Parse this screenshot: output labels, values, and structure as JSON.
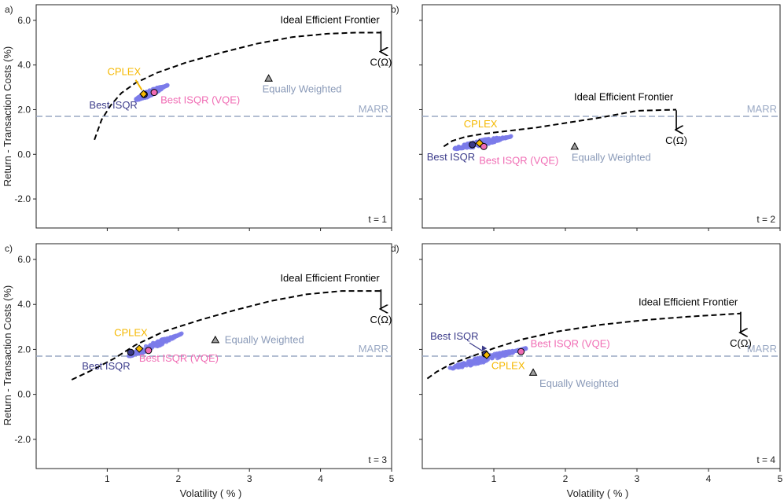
{
  "figure": {
    "ylabel": "Return - Transaction Costs (%)",
    "xlabel": "Volatility ( % )"
  },
  "colors": {
    "frontier": "#000000",
    "marr": "#9aa9c4",
    "cloud": "#7b7bea",
    "best_isqr": "#3b3b8a",
    "best_isqr_vqe": "#f06cb4",
    "cplex": "#f5b800",
    "equally_weighted": "#8a9ab8",
    "ew_marker": "#a0a0a0"
  },
  "chart_data": [
    {
      "type": "scatter",
      "panel_label": "a)",
      "time_label": "t = 1",
      "xlim": [
        0,
        5
      ],
      "ylim": [
        -3.3,
        6.7
      ],
      "xticks": [
        1,
        2,
        3,
        4,
        5
      ],
      "yticks": [
        -2.0,
        0.0,
        2.0,
        4.0,
        6.0
      ],
      "ytick_labels": [
        "-2.0",
        "0.0",
        "2.0",
        "4.0",
        "6.0"
      ],
      "xticks_shown": false,
      "yticks_shown": true,
      "marr": 1.7,
      "marr_label": "MARR",
      "frontier": {
        "label": "Ideal Efficient Frontier",
        "x": [
          0.82,
          0.92,
          1.05,
          1.2,
          1.4,
          1.7,
          2.1,
          2.6,
          3.1,
          3.6,
          4.1,
          4.5,
          4.85
        ],
        "y": [
          0.65,
          1.55,
          2.2,
          2.75,
          3.2,
          3.65,
          4.1,
          4.55,
          4.95,
          5.25,
          5.4,
          5.45,
          5.45
        ],
        "end_label": "C(Ω)",
        "arrow_from": [
          4.85,
          5.45
        ],
        "arrow_to": [
          4.85,
          4.6
        ]
      },
      "cloud": {
        "x": [
          1.4,
          1.85
        ],
        "y": [
          2.45,
          3.1
        ]
      },
      "best_isqr": {
        "label": "Best ISQR",
        "x": 1.52,
        "y": 2.68
      },
      "best_isqr_vqe": {
        "label": "Best ISQR (VQE)",
        "x": 1.66,
        "y": 2.77
      },
      "cplex": {
        "label": "CPLEX",
        "x": 1.51,
        "y": 2.7
      },
      "equally_weighted": {
        "label": "Equally Weighted",
        "x": 3.27,
        "y": 3.4
      }
    },
    {
      "type": "scatter",
      "panel_label": "b)",
      "time_label": "t = 2",
      "xlim": [
        0,
        5
      ],
      "ylim": [
        -3.3,
        6.7
      ],
      "xticks": [
        1,
        2,
        3,
        4,
        5
      ],
      "yticks": [
        -2.0,
        0.0,
        2.0,
        4.0,
        6.0
      ],
      "xticks_shown": false,
      "yticks_shown": false,
      "marr": 1.7,
      "marr_label": "MARR",
      "frontier": {
        "label": "Ideal Efficient Frontier",
        "x": [
          0.3,
          0.42,
          0.6,
          0.85,
          1.2,
          1.6,
          2.0,
          2.5,
          3.0,
          3.55
        ],
        "y": [
          0.35,
          0.6,
          0.78,
          0.92,
          1.05,
          1.2,
          1.4,
          1.65,
          1.95,
          2.0
        ],
        "end_label": "C(Ω)",
        "arrow_from": [
          3.55,
          1.9
        ],
        "arrow_to": [
          3.55,
          1.1
        ]
      },
      "cloud": {
        "x": [
          0.45,
          1.25
        ],
        "y": [
          0.25,
          0.8
        ]
      },
      "best_isqr": {
        "label": "Best ISQR",
        "x": 0.7,
        "y": 0.43
      },
      "best_isqr_vqe": {
        "label": "Best ISQR (VQE)",
        "x": 0.86,
        "y": 0.35
      },
      "cplex": {
        "label": "CPLEX",
        "x": 0.8,
        "y": 0.5
      },
      "equally_weighted": {
        "label": "Equally Weighted",
        "x": 2.13,
        "y": 0.35
      }
    },
    {
      "type": "scatter",
      "panel_label": "c)",
      "time_label": "t = 3",
      "xlim": [
        0,
        5
      ],
      "ylim": [
        -3.3,
        6.7
      ],
      "xticks": [
        1,
        2,
        3,
        4,
        5
      ],
      "xtick_labels": [
        "1",
        "2",
        "3",
        "4",
        "5"
      ],
      "yticks": [
        -2.0,
        0.0,
        2.0,
        4.0,
        6.0
      ],
      "ytick_labels": [
        "-2.0",
        "0.0",
        "2.0",
        "4.0",
        "6.0"
      ],
      "xticks_shown": true,
      "yticks_shown": true,
      "marr": 1.7,
      "marr_label": "MARR",
      "frontier": {
        "label": "Ideal Efficient Frontier",
        "x": [
          0.5,
          0.8,
          1.1,
          1.4,
          1.8,
          2.3,
          2.8,
          3.3,
          3.8,
          4.3,
          4.85
        ],
        "y": [
          0.65,
          1.1,
          1.6,
          2.2,
          2.8,
          3.3,
          3.75,
          4.15,
          4.45,
          4.6,
          4.6
        ],
        "end_label": "C(Ω)",
        "arrow_from": [
          4.85,
          4.6
        ],
        "arrow_to": [
          4.85,
          3.8
        ]
      },
      "cloud": {
        "x": [
          1.3,
          2.05
        ],
        "y": [
          1.7,
          2.7
        ]
      },
      "best_isqr": {
        "label": "Best ISQR",
        "x": 1.33,
        "y": 1.87
      },
      "best_isqr_vqe": {
        "label": "Best ISQR (VQE)",
        "x": 1.58,
        "y": 1.95
      },
      "cplex": {
        "label": "CPLEX",
        "x": 1.45,
        "y": 2.03
      },
      "equally_weighted": {
        "label": "Equally Weighted",
        "x": 2.52,
        "y": 2.42
      }
    },
    {
      "type": "scatter",
      "panel_label": "d)",
      "time_label": "t = 4",
      "xlim": [
        0,
        5
      ],
      "ylim": [
        -3.3,
        6.7
      ],
      "xticks": [
        1,
        2,
        3,
        4,
        5
      ],
      "xtick_labels": [
        "1",
        "2",
        "3",
        "4",
        "5"
      ],
      "yticks": [
        -2.0,
        0.0,
        2.0,
        4.0,
        6.0
      ],
      "xticks_shown": true,
      "yticks_shown": false,
      "marr": 1.7,
      "marr_label": "MARR",
      "frontier": {
        "label": "Ideal Efficient Frontier",
        "x": [
          0.07,
          0.2,
          0.4,
          0.7,
          1.0,
          1.4,
          1.9,
          2.5,
          3.1,
          3.7,
          4.45
        ],
        "y": [
          0.7,
          1.0,
          1.35,
          1.7,
          2.05,
          2.45,
          2.8,
          3.1,
          3.3,
          3.45,
          3.6
        ],
        "end_label": "C(Ω)",
        "arrow_from": [
          4.45,
          3.6
        ],
        "arrow_to": [
          4.45,
          2.75
        ]
      },
      "cloud": {
        "x": [
          0.38,
          1.45
        ],
        "y": [
          1.15,
          2.05
        ]
      },
      "best_isqr": {
        "label": "Best ISQR",
        "x": 0.88,
        "y": 1.8
      },
      "best_isqr_vqe": {
        "label": "Best ISQR (VQE)",
        "x": 1.38,
        "y": 1.9
      },
      "cplex": {
        "label": "CPLEX",
        "x": 0.9,
        "y": 1.75
      },
      "equally_weighted": {
        "label": "Equally Weighted",
        "x": 1.55,
        "y": 0.97
      }
    }
  ]
}
